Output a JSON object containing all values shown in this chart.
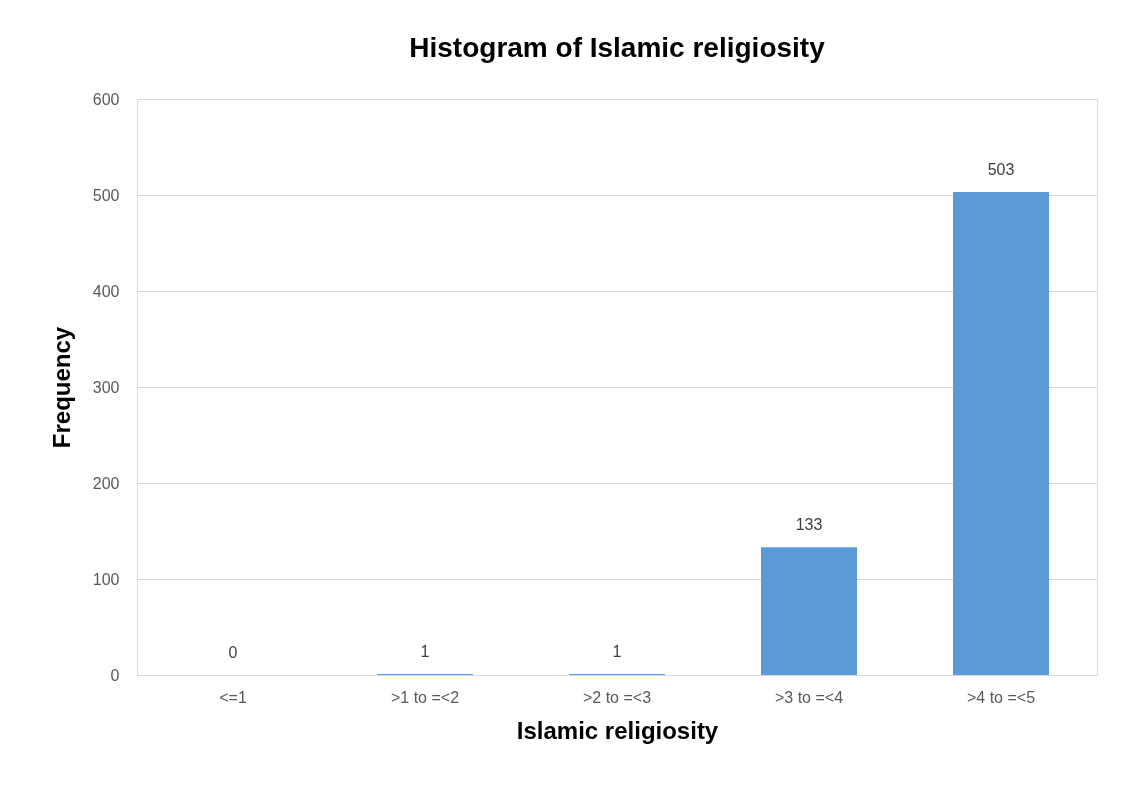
{
  "chart_data": {
    "type": "bar",
    "title": "Histogram of Islamic religiosity",
    "xlabel": "Islamic religiosity",
    "ylabel": "Frequency",
    "categories": [
      "<=1",
      ">1 to =<2",
      ">2 to =<3",
      ">3 to =<4",
      ">4 to =<5"
    ],
    "values": [
      0,
      1,
      1,
      133,
      503
    ],
    "color": "#5b9bd5",
    "ylim": [
      0,
      600
    ],
    "yticks": [
      0,
      100,
      200,
      300,
      400,
      500,
      600
    ],
    "grid": "y",
    "data_labels": true
  }
}
